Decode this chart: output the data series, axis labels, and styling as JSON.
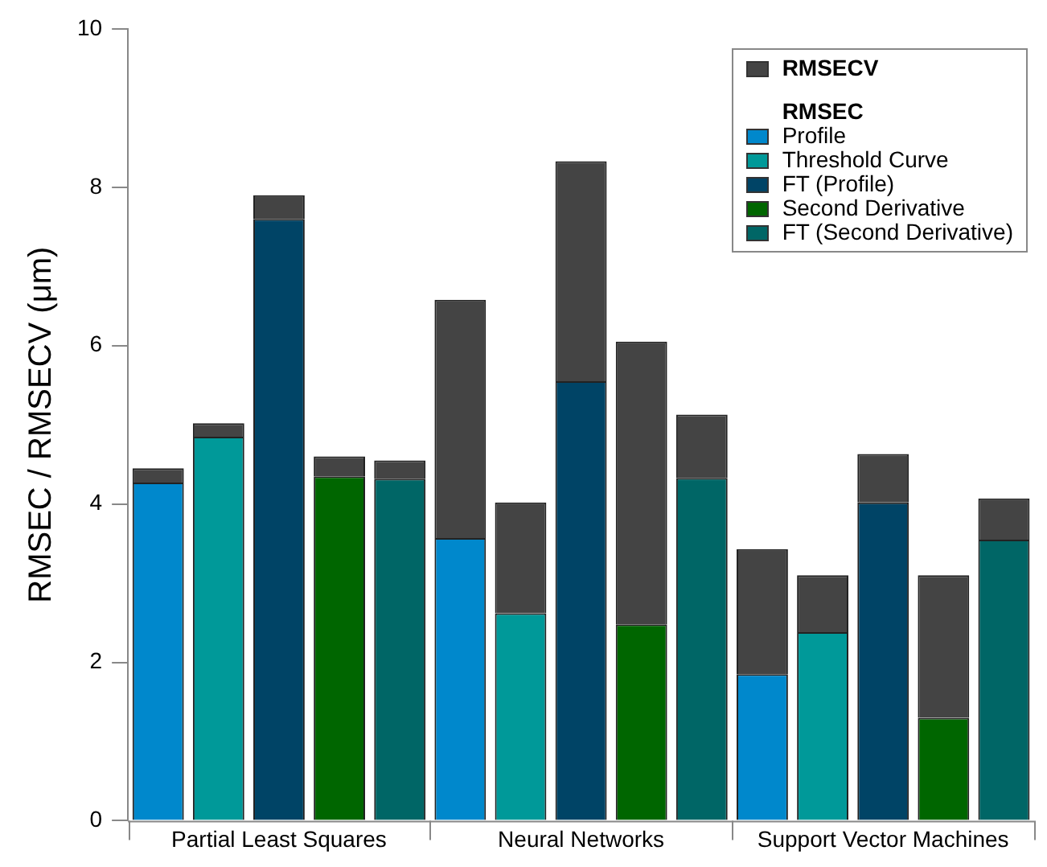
{
  "chart_data": {
    "type": "bar",
    "stacked": true,
    "ylabel": "RMSEC / RMSECV (μm)",
    "legend_title": "RMSEC",
    "legend": "top right",
    "grid": false,
    "categories": [
      null,
      null,
      "Partial Least Squares",
      null,
      null,
      null,
      null,
      "Neural Networks",
      null,
      null,
      null,
      null,
      "Support Vector Machines",
      null,
      null
    ],
    "ylim": [
      0,
      10
    ],
    "yticks": [
      0,
      2,
      4,
      6,
      8,
      10
    ],
    "series": [
      {
        "name": "Profile",
        "color": "#0088cc",
        "values": [
          4.27,
          null,
          null,
          null,
          null,
          3.57,
          null,
          null,
          null,
          null,
          1.85,
          null,
          null,
          null,
          null
        ]
      },
      {
        "name": "Threshold Curve",
        "color": "#009999",
        "values": [
          null,
          4.85,
          null,
          null,
          null,
          null,
          2.62,
          null,
          null,
          null,
          null,
          2.38,
          null,
          null,
          null
        ]
      },
      {
        "name": "FT (Profile)",
        "color": "#004466",
        "values": [
          null,
          null,
          7.6,
          null,
          null,
          null,
          null,
          5.55,
          null,
          null,
          null,
          null,
          4.02,
          null,
          null
        ]
      },
      {
        "name": "Second Derivative",
        "color": "#006600",
        "values": [
          null,
          null,
          null,
          4.35,
          null,
          null,
          null,
          null,
          2.48,
          null,
          null,
          null,
          null,
          1.3,
          null
        ]
      },
      {
        "name": "FT (Second Derivative)",
        "color": "#006666",
        "values": [
          null,
          null,
          null,
          null,
          4.32,
          null,
          null,
          null,
          null,
          4.33,
          null,
          null,
          null,
          null,
          3.55
        ]
      },
      {
        "name": "RMSECV",
        "color": "#444444",
        "values": [
          0.18,
          0.17,
          0.3,
          0.25,
          0.23,
          3.01,
          1.4,
          2.78,
          3.57,
          0.8,
          1.58,
          0.72,
          0.61,
          1.8,
          0.52
        ]
      }
    ]
  }
}
